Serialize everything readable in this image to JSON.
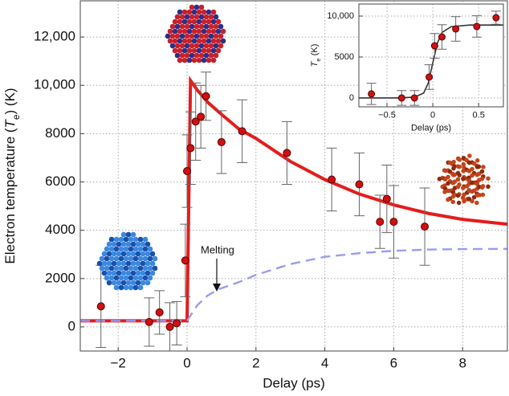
{
  "chart_data": [
    {
      "type": "line",
      "xlabel": "Delay (ps)",
      "ylabel": {
        "text": "Electron temperature (",
        "symbol": "T",
        "subscript": "e",
        "unit": ") (K)"
      },
      "annotation": "Melting",
      "xlim": [
        -3.1,
        9.3
      ],
      "ylim": [
        -1000,
        13500
      ],
      "xticks": [
        {
          "value": -2,
          "label": "−2"
        },
        0,
        2,
        4,
        6,
        8
      ],
      "yticks": [
        0,
        2000,
        4000,
        6000,
        8000,
        {
          "value": 10000,
          "label": "10,000"
        },
        {
          "value": 12000,
          "label": "12,000"
        }
      ],
      "grid": true,
      "series": [
        {
          "type": "line",
          "color": "#e51c1c",
          "dashed": false,
          "x": [
            -3.1,
            0,
            0.1,
            0.3,
            0.6,
            1,
            1.5,
            2,
            3,
            4,
            5,
            6,
            7,
            8,
            9.3
          ],
          "values": [
            250,
            250,
            10200,
            9800,
            9300,
            8800,
            8200,
            7800,
            6850,
            6100,
            5500,
            5050,
            4700,
            4450,
            4250
          ]
        },
        {
          "type": "line",
          "color": "#9a9cf0",
          "dashed": true,
          "x": [
            -3.1,
            0,
            0.3,
            0.6,
            0.9,
            1.5,
            2,
            3,
            4,
            5,
            6,
            7,
            8,
            9.3
          ],
          "values": [
            250,
            250,
            900,
            1300,
            1550,
            1850,
            2150,
            2600,
            2900,
            3050,
            3150,
            3200,
            3220,
            3230
          ]
        },
        {
          "type": "scatter",
          "color": "#d01010",
          "x": [
            -2.5,
            -1.1,
            -0.8,
            -0.5,
            -0.3,
            -0.05,
            0.0,
            0.1,
            0.25,
            0.4,
            0.55,
            1.0,
            1.6,
            2.9,
            4.2,
            5.0,
            5.6,
            5.8,
            6.0,
            6.9
          ],
          "values": [
            850,
            200,
            600,
            0,
            150,
            2750,
            6450,
            7400,
            8500,
            8700,
            9550,
            7650,
            8100,
            7200,
            6100,
            5900,
            4350,
            5300,
            4350,
            4150
          ],
          "errors": [
            1700,
            1000,
            900,
            1000,
            900,
            1500,
            1500,
            1500,
            1600,
            1300,
            1000,
            1300,
            1300,
            1300,
            1300,
            1300,
            1100,
            1400,
            1500,
            1600
          ]
        }
      ]
    },
    {
      "type": "line",
      "xlabel": "Delay (ps)",
      "ylabel": {
        "symbol": "T",
        "subscript": "e",
        "unit": " (K)"
      },
      "xlim": [
        -0.807,
        0.77
      ],
      "ylim": [
        -1080,
        11470
      ],
      "xticks": [
        {
          "value": -0.5,
          "label": "−0.5"
        },
        0,
        0.5
      ],
      "yticks": [
        0,
        5000,
        {
          "value": 10000,
          "label": "10,000"
        }
      ],
      "grid": true,
      "series": [
        {
          "type": "line",
          "color": "#333333",
          "dashed": false,
          "x": [
            -0.807,
            -0.4,
            -0.2,
            -0.1,
            -0.05,
            0,
            0.05,
            0.1,
            0.2,
            0.4,
            0.77
          ],
          "values": [
            0,
            0,
            100,
            600,
            1800,
            4300,
            6700,
            8000,
            8700,
            8900,
            8900
          ]
        },
        {
          "type": "scatter",
          "color": "#d01010",
          "x": [
            -0.67,
            -0.34,
            -0.2,
            -0.04,
            0.02,
            0.1,
            0.25,
            0.48,
            0.69
          ],
          "values": [
            500,
            0,
            0,
            2550,
            6370,
            7450,
            8430,
            8730,
            9800
          ],
          "errors": [
            1300,
            900,
            900,
            1500,
            1500,
            1500,
            1500,
            1300,
            800
          ]
        }
      ]
    }
  ]
}
